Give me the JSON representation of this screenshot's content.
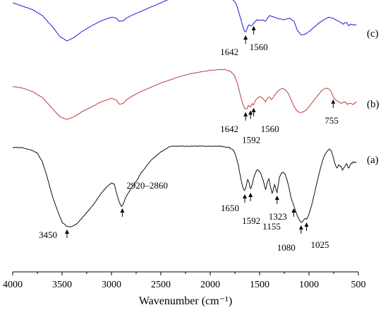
{
  "chart_data": {
    "type": "line",
    "title": "",
    "xlabel": "Wavenumber (cm⁻¹)",
    "ylabel": "",
    "xlim": [
      4000,
      500
    ],
    "x_reversed": true,
    "xticks": [
      "4000",
      "3500",
      "3000",
      "2500",
      "2000",
      "1500",
      "1000",
      "500"
    ],
    "grid": false,
    "series": [
      {
        "name": "(c)",
        "color": "#1a1adc",
        "points": [
          [
            4000,
            1.2
          ],
          [
            3900,
            1.16
          ],
          [
            3800,
            1.12
          ],
          [
            3700,
            1.05
          ],
          [
            3600,
            0.92
          ],
          [
            3520,
            0.8
          ],
          [
            3450,
            0.75
          ],
          [
            3380,
            0.79
          ],
          [
            3300,
            0.86
          ],
          [
            3200,
            0.93
          ],
          [
            3100,
            0.99
          ],
          [
            3000,
            1.03
          ],
          [
            2950,
            1.02
          ],
          [
            2920,
            0.98
          ],
          [
            2880,
            0.99
          ],
          [
            2850,
            1.02
          ],
          [
            2800,
            1.05
          ],
          [
            2700,
            1.1
          ],
          [
            2600,
            1.15
          ],
          [
            2500,
            1.2
          ],
          [
            2400,
            1.25
          ],
          [
            2300,
            1.29
          ],
          [
            2200,
            1.31
          ],
          [
            2100,
            1.32
          ],
          [
            2000,
            1.33
          ],
          [
            1900,
            1.31
          ],
          [
            1800,
            1.27
          ],
          [
            1740,
            1.2
          ],
          [
            1700,
            1.05
          ],
          [
            1670,
            0.92
          ],
          [
            1650,
            0.86
          ],
          [
            1642,
            0.85
          ],
          [
            1630,
            0.88
          ],
          [
            1610,
            0.95
          ],
          [
            1590,
            0.92
          ],
          [
            1560,
            0.96
          ],
          [
            1530,
            1.0
          ],
          [
            1500,
            0.99
          ],
          [
            1470,
            1.0
          ],
          [
            1440,
            0.98
          ],
          [
            1420,
            1.02
          ],
          [
            1400,
            1.05
          ],
          [
            1380,
            1.04
          ],
          [
            1350,
            1.03
          ],
          [
            1300,
            1.01
          ],
          [
            1250,
            1.0
          ],
          [
            1200,
            1.02
          ],
          [
            1150,
            0.98
          ],
          [
            1120,
            0.88
          ],
          [
            1080,
            0.82
          ],
          [
            1040,
            0.83
          ],
          [
            1000,
            0.86
          ],
          [
            960,
            0.9
          ],
          [
            900,
            0.96
          ],
          [
            850,
            1.0
          ],
          [
            800,
            1.03
          ],
          [
            760,
            1.02
          ],
          [
            730,
            1.0
          ],
          [
            700,
            0.98
          ],
          [
            650,
            0.95
          ],
          [
            620,
            0.97
          ],
          [
            600,
            0.93
          ],
          [
            570,
            0.95
          ],
          [
            540,
            0.93
          ],
          [
            520,
            0.95
          ]
        ]
      },
      {
        "name": "(b)",
        "color": "#c0393b",
        "points": [
          [
            4000,
            0.88
          ],
          [
            3900,
            0.86
          ],
          [
            3800,
            0.82
          ],
          [
            3700,
            0.75
          ],
          [
            3600,
            0.62
          ],
          [
            3520,
            0.52
          ],
          [
            3450,
            0.49
          ],
          [
            3380,
            0.52
          ],
          [
            3300,
            0.58
          ],
          [
            3200,
            0.64
          ],
          [
            3100,
            0.7
          ],
          [
            3000,
            0.74
          ],
          [
            2950,
            0.72
          ],
          [
            2920,
            0.67
          ],
          [
            2880,
            0.68
          ],
          [
            2850,
            0.72
          ],
          [
            2800,
            0.76
          ],
          [
            2700,
            0.82
          ],
          [
            2600,
            0.87
          ],
          [
            2500,
            0.92
          ],
          [
            2400,
            0.96
          ],
          [
            2300,
            1.0
          ],
          [
            2200,
            1.03
          ],
          [
            2100,
            1.05
          ],
          [
            2000,
            1.07
          ],
          [
            1900,
            1.08
          ],
          [
            1850,
            1.08
          ],
          [
            1800,
            1.06
          ],
          [
            1760,
            1.02
          ],
          [
            1720,
            0.9
          ],
          [
            1690,
            0.75
          ],
          [
            1660,
            0.64
          ],
          [
            1642,
            0.61
          ],
          [
            1630,
            0.62
          ],
          [
            1610,
            0.66
          ],
          [
            1592,
            0.63
          ],
          [
            1575,
            0.68
          ],
          [
            1560,
            0.66
          ],
          [
            1540,
            0.72
          ],
          [
            1500,
            0.76
          ],
          [
            1470,
            0.74
          ],
          [
            1440,
            0.7
          ],
          [
            1420,
            0.74
          ],
          [
            1400,
            0.76
          ],
          [
            1380,
            0.72
          ],
          [
            1350,
            0.77
          ],
          [
            1320,
            0.82
          ],
          [
            1300,
            0.84
          ],
          [
            1270,
            0.86
          ],
          [
            1240,
            0.84
          ],
          [
            1210,
            0.8
          ],
          [
            1180,
            0.72
          ],
          [
            1150,
            0.64
          ],
          [
            1120,
            0.59
          ],
          [
            1090,
            0.57
          ],
          [
            1060,
            0.58
          ],
          [
            1030,
            0.6
          ],
          [
            1000,
            0.64
          ],
          [
            960,
            0.7
          ],
          [
            920,
            0.76
          ],
          [
            880,
            0.82
          ],
          [
            850,
            0.85
          ],
          [
            820,
            0.86
          ],
          [
            800,
            0.85
          ],
          [
            780,
            0.83
          ],
          [
            755,
            0.76
          ],
          [
            730,
            0.72
          ],
          [
            700,
            0.7
          ],
          [
            670,
            0.68
          ],
          [
            640,
            0.7
          ],
          [
            610,
            0.67
          ],
          [
            580,
            0.68
          ],
          [
            550,
            0.67
          ],
          [
            520,
            0.7
          ]
        ]
      },
      {
        "name": "(a)",
        "color": "#111111",
        "points": [
          [
            4000,
            0.66
          ],
          [
            3900,
            0.66
          ],
          [
            3800,
            0.64
          ],
          [
            3750,
            0.62
          ],
          [
            3700,
            0.56
          ],
          [
            3650,
            0.45
          ],
          [
            3600,
            0.32
          ],
          [
            3550,
            0.22
          ],
          [
            3500,
            0.13
          ],
          [
            3450,
            0.1
          ],
          [
            3400,
            0.1
          ],
          [
            3350,
            0.12
          ],
          [
            3300,
            0.16
          ],
          [
            3250,
            0.2
          ],
          [
            3200,
            0.24
          ],
          [
            3150,
            0.29
          ],
          [
            3100,
            0.34
          ],
          [
            3050,
            0.38
          ],
          [
            3000,
            0.41
          ],
          [
            2970,
            0.4
          ],
          [
            2950,
            0.34
          ],
          [
            2920,
            0.27
          ],
          [
            2900,
            0.24
          ],
          [
            2880,
            0.26
          ],
          [
            2860,
            0.3
          ],
          [
            2820,
            0.35
          ],
          [
            2750,
            0.42
          ],
          [
            2700,
            0.48
          ],
          [
            2600,
            0.57
          ],
          [
            2500,
            0.63
          ],
          [
            2400,
            0.67
          ],
          [
            2300,
            0.67
          ],
          [
            2200,
            0.67
          ],
          [
            2100,
            0.67
          ],
          [
            2000,
            0.67
          ],
          [
            1900,
            0.67
          ],
          [
            1800,
            0.66
          ],
          [
            1760,
            0.64
          ],
          [
            1720,
            0.55
          ],
          [
            1690,
            0.44
          ],
          [
            1670,
            0.38
          ],
          [
            1650,
            0.35
          ],
          [
            1635,
            0.39
          ],
          [
            1620,
            0.44
          ],
          [
            1605,
            0.41
          ],
          [
            1592,
            0.36
          ],
          [
            1575,
            0.4
          ],
          [
            1550,
            0.47
          ],
          [
            1520,
            0.51
          ],
          [
            1490,
            0.48
          ],
          [
            1460,
            0.42
          ],
          [
            1440,
            0.36
          ],
          [
            1420,
            0.42
          ],
          [
            1405,
            0.44
          ],
          [
            1390,
            0.38
          ],
          [
            1370,
            0.33
          ],
          [
            1350,
            0.4
          ],
          [
            1323,
            0.34
          ],
          [
            1300,
            0.45
          ],
          [
            1270,
            0.49
          ],
          [
            1240,
            0.47
          ],
          [
            1210,
            0.4
          ],
          [
            1180,
            0.3
          ],
          [
            1155,
            0.25
          ],
          [
            1140,
            0.22
          ],
          [
            1120,
            0.18
          ],
          [
            1100,
            0.15
          ],
          [
            1080,
            0.13
          ],
          [
            1060,
            0.14
          ],
          [
            1040,
            0.16
          ],
          [
            1025,
            0.15
          ],
          [
            1000,
            0.19
          ],
          [
            970,
            0.26
          ],
          [
            940,
            0.35
          ],
          [
            900,
            0.47
          ],
          [
            870,
            0.55
          ],
          [
            840,
            0.61
          ],
          [
            810,
            0.64
          ],
          [
            790,
            0.65
          ],
          [
            770,
            0.63
          ],
          [
            750,
            0.58
          ],
          [
            730,
            0.53
          ],
          [
            715,
            0.51
          ],
          [
            700,
            0.54
          ],
          [
            680,
            0.53
          ],
          [
            660,
            0.5
          ],
          [
            640,
            0.52
          ],
          [
            620,
            0.55
          ],
          [
            600,
            0.51
          ],
          [
            580,
            0.54
          ],
          [
            550,
            0.56
          ],
          [
            520,
            0.55
          ]
        ]
      }
    ],
    "annotations": [
      {
        "text": "1642",
        "series": "(c)",
        "x": 1642,
        "label_dx": -36,
        "label_dy": 32
      },
      {
        "text": "1560",
        "series": "(c)",
        "x": 1560,
        "label_dx": -6,
        "label_dy": 38
      },
      {
        "text": "1642",
        "series": "(b)",
        "x": 1642,
        "label_dx": -36,
        "label_dy": 32
      },
      {
        "text": "1592",
        "series": "(b)",
        "x": 1592,
        "label_dx": -12,
        "label_dy": 50
      },
      {
        "text": "1560",
        "series": "(b)",
        "x": 1560,
        "label_dx": 10,
        "label_dy": 38
      },
      {
        "text": "755",
        "series": "(b)",
        "x": 755,
        "label_dx": -12,
        "label_dy": 38
      },
      {
        "text": "1650",
        "series": "(a)",
        "x": 1650,
        "label_dx": -34,
        "label_dy": 28
      },
      {
        "text": "1592",
        "series": "(a)",
        "x": 1592,
        "label_dx": -12,
        "label_dy": 48
      },
      {
        "text": "1323",
        "series": "(a)",
        "x": 1323,
        "label_dx": -12,
        "label_dy": 38
      },
      {
        "text": "1155",
        "series": "(a)",
        "x": 1155,
        "label_dx": -44,
        "label_dy": 34
      },
      {
        "text": "1080",
        "series": "(a)",
        "x": 1080,
        "label_dx": -34,
        "label_dy": 40
      },
      {
        "text": "1025",
        "series": "(a)",
        "x": 1025,
        "label_dx": 6,
        "label_dy": 40
      },
      {
        "text": "3450",
        "series": "(a)",
        "x": 3450,
        "label_dx": -40,
        "label_dy": 16
      },
      {
        "text": "2920–2860",
        "series": "(a)",
        "x": 2890,
        "label_dx": 6,
        "label_dy": -24
      }
    ]
  }
}
